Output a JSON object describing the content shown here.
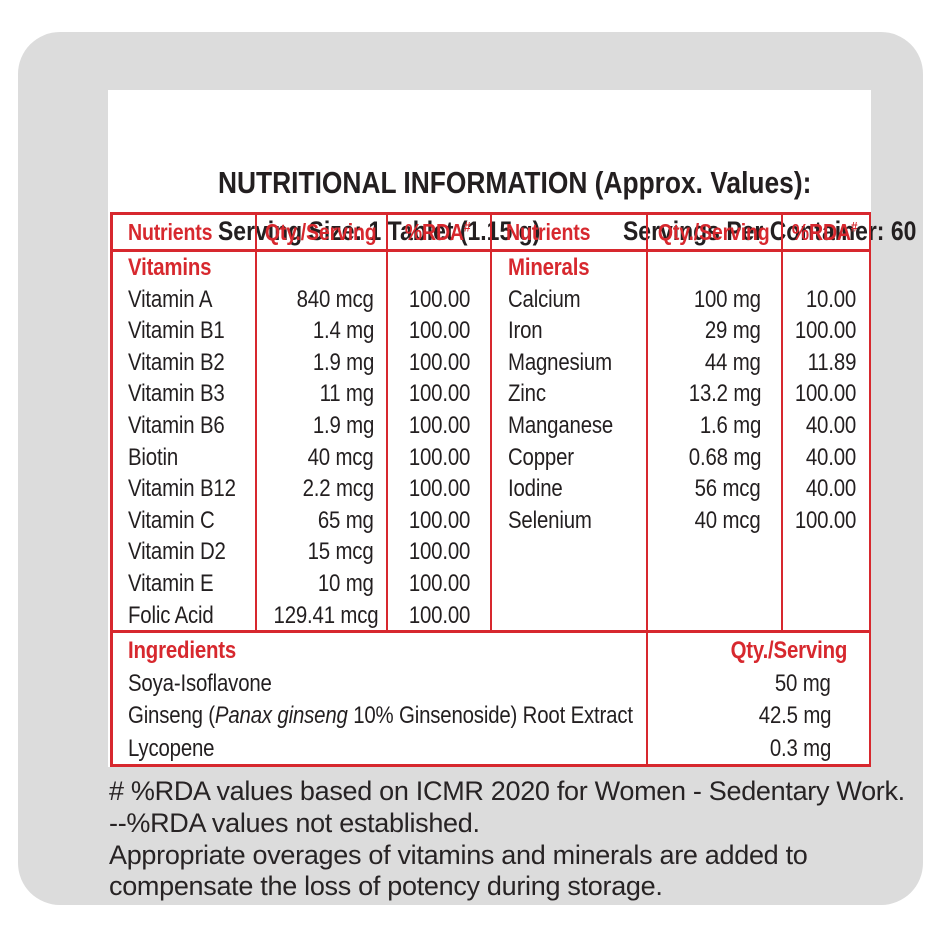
{
  "colors": {
    "accent_red": "#d7282e",
    "text_ink": "#231f20",
    "card_background": "#dcdcdc"
  },
  "header": {
    "title": "NUTRITIONAL INFORMATION (Approx. Values):",
    "serving_size": "Serving Size: 1 Tablet (1.15 g)",
    "servings_per_container": "Servings Per Container: 60"
  },
  "table": {
    "col_nutrients": "Nutrients",
    "col_qty": "Qty./Serving",
    "col_rda": "%RDA",
    "rda_sup": "#",
    "vitamins": {
      "group_label": "Vitamins",
      "rows": [
        {
          "name": "Vitamin A",
          "qty": "840 mcg",
          "rda": "100.00"
        },
        {
          "name": "Vitamin B1",
          "qty": "1.4 mg",
          "rda": "100.00"
        },
        {
          "name": "Vitamin B2",
          "qty": "1.9 mg",
          "rda": "100.00"
        },
        {
          "name": "Vitamin B3",
          "qty": "11 mg",
          "rda": "100.00"
        },
        {
          "name": "Vitamin B6",
          "qty": "1.9 mg",
          "rda": "100.00"
        },
        {
          "name": "Biotin",
          "qty": "40 mcg",
          "rda": "100.00"
        },
        {
          "name": "Vitamin B12",
          "qty": "2.2 mcg",
          "rda": "100.00"
        },
        {
          "name": "Vitamin C",
          "qty": "65 mg",
          "rda": "100.00"
        },
        {
          "name": "Vitamin D2",
          "qty": "15 mcg",
          "rda": "100.00"
        },
        {
          "name": "Vitamin E",
          "qty": "10 mg",
          "rda": "100.00"
        },
        {
          "name": "Folic Acid",
          "qty": "129.41 mcg",
          "rda": "100.00"
        }
      ]
    },
    "minerals": {
      "group_label": "Minerals",
      "rows": [
        {
          "name": "Calcium",
          "qty": "100 mg",
          "rda": "10.00"
        },
        {
          "name": "Iron",
          "qty": "29 mg",
          "rda": "100.00"
        },
        {
          "name": "Magnesium",
          "qty": "44 mg",
          "rda": "11.89"
        },
        {
          "name": "Zinc",
          "qty": "13.2 mg",
          "rda": "100.00"
        },
        {
          "name": "Manganese",
          "qty": "1.6 mg",
          "rda": "40.00"
        },
        {
          "name": "Copper",
          "qty": "0.68 mg",
          "rda": "40.00"
        },
        {
          "name": "Iodine",
          "qty": "56 mcg",
          "rda": "40.00"
        },
        {
          "name": "Selenium",
          "qty": "40 mcg",
          "rda": "100.00"
        }
      ]
    }
  },
  "ingredients": {
    "header_label": "Ingredients",
    "qty_header_label": "Qty./Serving",
    "rows": [
      {
        "name_parts": [
          {
            "text": "Soya-Isoflavone",
            "italic": false
          }
        ],
        "qty": "50 mg"
      },
      {
        "name_parts": [
          {
            "text": "Ginseng (",
            "italic": false
          },
          {
            "text": "Panax ginseng",
            "italic": true
          },
          {
            "text": " 10% Ginsenoside) Root Extract",
            "italic": false
          }
        ],
        "qty": "42.5 mg"
      },
      {
        "name_parts": [
          {
            "text": "Lycopene",
            "italic": false
          }
        ],
        "qty": "0.3 mg"
      }
    ]
  },
  "footnotes": {
    "lines": [
      "# %RDA values based on ICMR 2020 for Women - Sedentary Work.",
      "--%RDA values not established.",
      "Appropriate overages of vitamins and minerals are added to",
      "compensate the loss of potency during storage."
    ]
  }
}
